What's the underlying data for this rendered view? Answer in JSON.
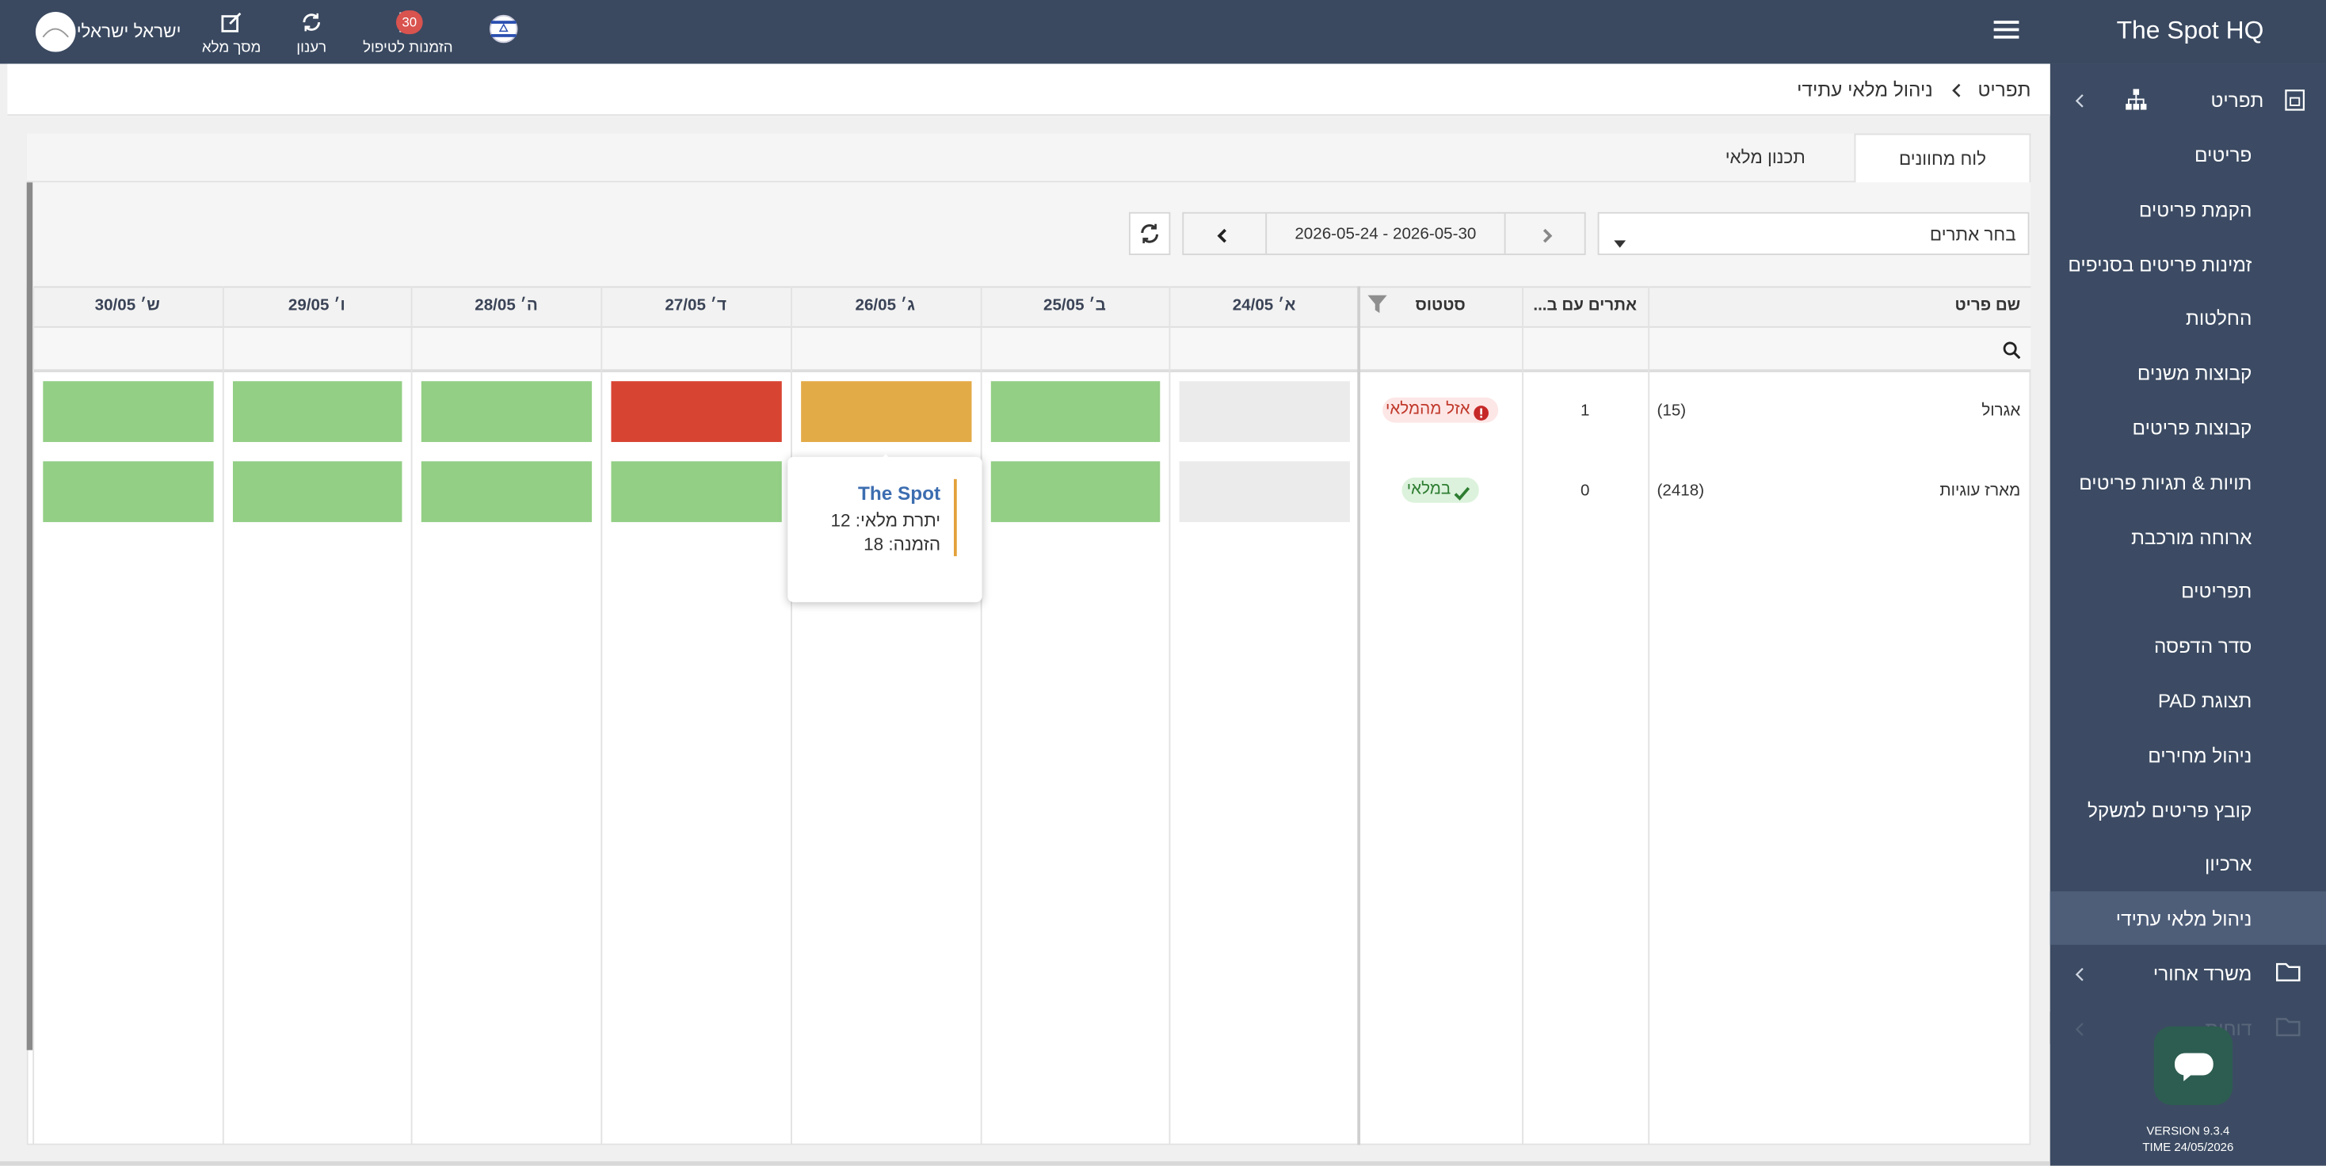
{
  "header": {
    "brand": "The Spot HQ",
    "user": "ישראל ישראלי",
    "actions": [
      {
        "label": "מסך מלא"
      },
      {
        "label": "רענון"
      },
      {
        "label": "הזמנות לטיפול",
        "badge": 30
      }
    ]
  },
  "sidebar": {
    "section": "תפריט",
    "items": [
      "פריטים",
      "הקמת פריטים",
      "זמינות פריטים בסניפים",
      "החלטות",
      "קבוצות משנים",
      "קבוצות פריטים",
      "תויות & תגיות פריטים",
      "ארוחה מורכבת",
      "תפריטים",
      "סדר הדפסה",
      "תצוגת PAD",
      "ניהול מחירים",
      "קובץ פריטים למשקל",
      "ארכיון",
      "ניהול מלאי עתידי"
    ],
    "active": 14,
    "sections": [
      "משרד אחורי",
      "דוחות"
    ],
    "version": "VERSION 9.3.4",
    "time": "TIME 24/05/2026"
  },
  "breadcrumb": [
    "תפריט",
    "ניהול מלאי עתידי"
  ],
  "tabs": [
    "לוח מחוונים",
    "תכנון מלאי"
  ],
  "toolbar": {
    "site_select": "בחר אתרים",
    "date_range": "2026-05-24 - 2026-05-30"
  },
  "table": {
    "columns": [
      "שם פריט",
      "אתרים עם ב...",
      "סטטוס"
    ],
    "days": [
      "א׳ 24/05",
      "ב׳ 25/05",
      "ג׳ 26/05",
      "ד׳ 27/05",
      "ה׳ 28/05",
      "ו׳ 29/05",
      "ש׳ 30/05"
    ],
    "rows": [
      {
        "name": "אגרול",
        "count": "(15)",
        "sites": 1,
        "status": "אזל מהמלאי",
        "status_type": "error",
        "cells": [
          "#ebebeb",
          "#93cf85",
          "#e3ab48",
          "#d84432",
          "#93cf85",
          "#93cf85",
          "#93cf85"
        ]
      },
      {
        "name": "מארז עוגיות",
        "count": "(2418)",
        "sites": 0,
        "status": "במלאי",
        "status_type": "ok",
        "cells": [
          "#ebebeb",
          "#93cf85",
          "#93cf85",
          "#93cf85",
          "#93cf85",
          "#93cf85",
          "#93cf85"
        ]
      }
    ]
  },
  "tooltip": {
    "title": "The Spot",
    "lines": [
      "יתרת מלאי: 12",
      "הזמנה: 18"
    ]
  }
}
